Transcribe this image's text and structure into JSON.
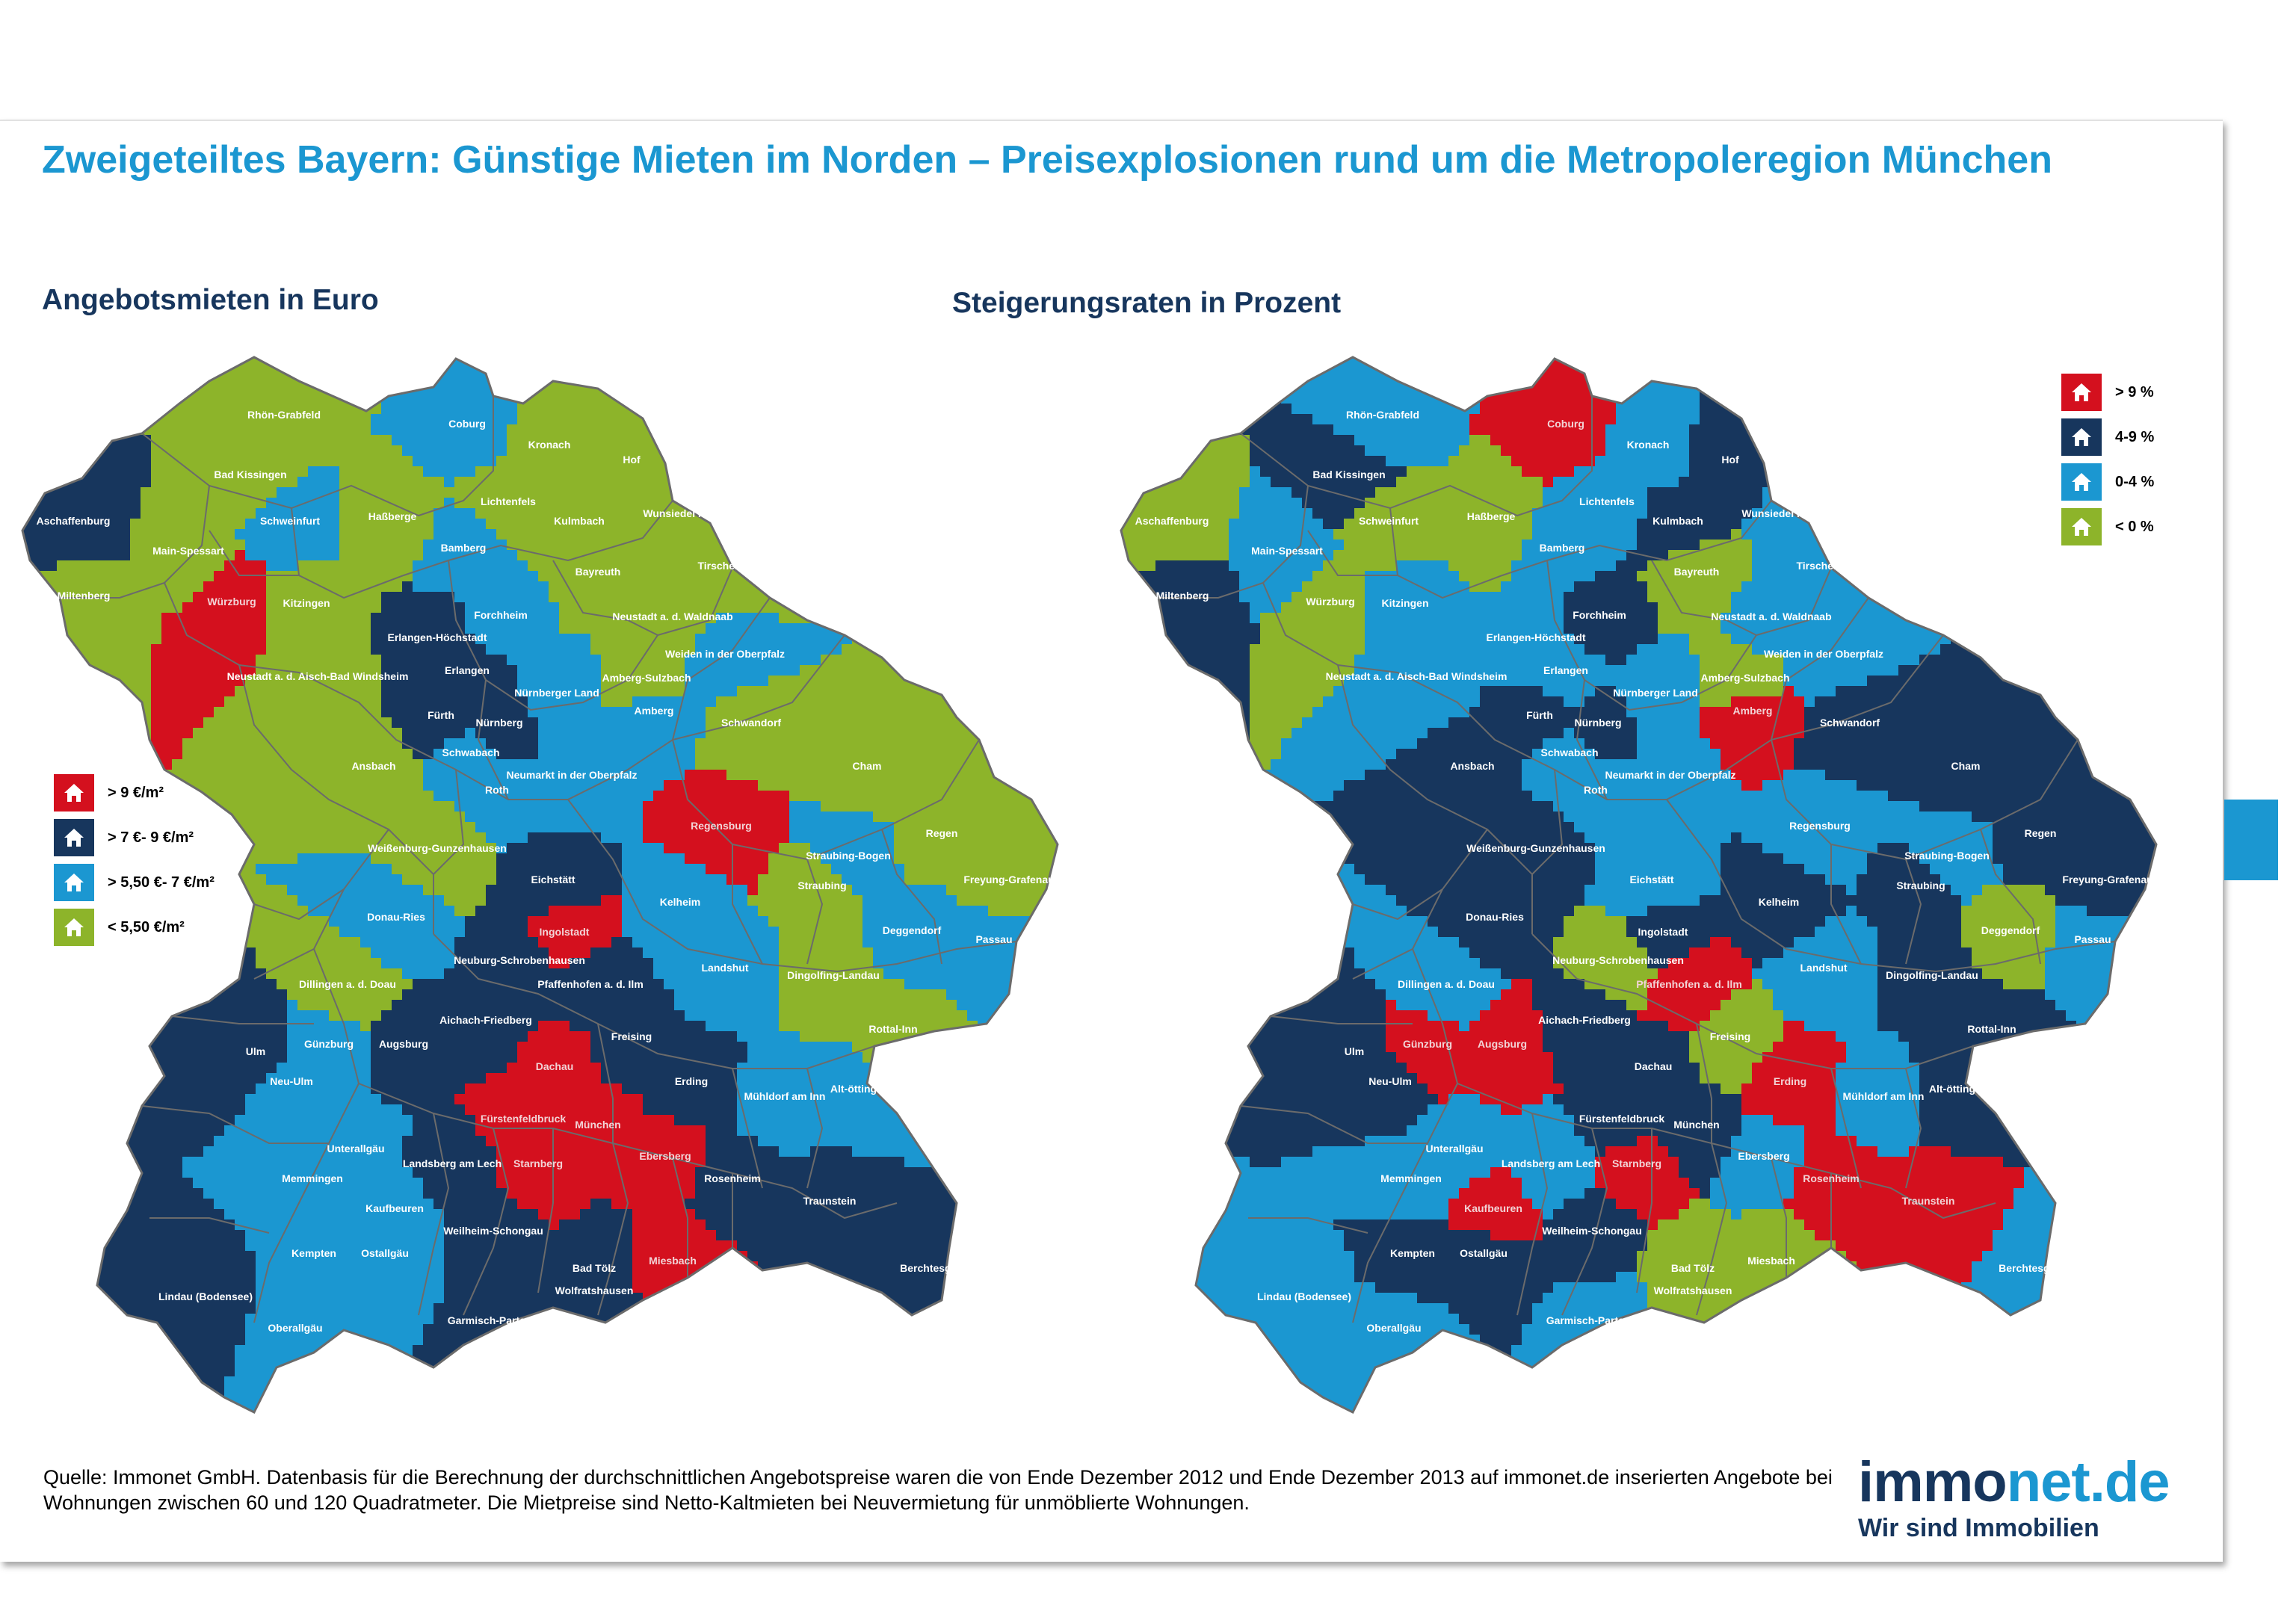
{
  "title": "Zweigeteiltes Bayern: Günstige Mieten im Norden – Preisexplosionen rund um die Metropoleregion München",
  "left_map": {
    "heading": "Angebotsmieten in Euro",
    "legend": [
      {
        "label": "> 9 €/m²",
        "color": "#d4101e"
      },
      {
        "label": "> 7 €- 9 €/m²",
        "color": "#17365d"
      },
      {
        "label": "> 5,50 €- 7 €/m²",
        "color": "#1b97d1"
      },
      {
        "label": "< 5,50 €/m²",
        "color": "#8db42a"
      }
    ],
    "regions": [
      {
        "name": "Rhön-Grabfeld",
        "value": "< 5,50 €/m²"
      },
      {
        "name": "Bad Kissingen",
        "value": "< 5,50 €/m²"
      },
      {
        "name": "Coburg",
        "value": "> 5,50 €- 7 €/m²"
      },
      {
        "name": "Kronach",
        "value": "< 5,50 €/m²"
      },
      {
        "name": "Hof",
        "value": "< 5,50 €/m²"
      },
      {
        "name": "Aschaffenburg",
        "value": "> 7 €- 9 €/m²"
      },
      {
        "name": "Main-Spessart",
        "value": "< 5,50 €/m²"
      },
      {
        "name": "Schweinfurt",
        "value": "> 5,50 €- 7 €/m²"
      },
      {
        "name": "Haßberge",
        "value": "< 5,50 €/m²"
      },
      {
        "name": "Lichtenfels",
        "value": "< 5,50 €/m²"
      },
      {
        "name": "Kulmbach",
        "value": "< 5,50 €/m²"
      },
      {
        "name": "Wunsiedel Fichtelgebirge",
        "value": "< 5,50 €/m²"
      },
      {
        "name": "Miltenberg",
        "value": "< 5,50 €/m²"
      },
      {
        "name": "Würzburg",
        "value": "> 9 €/m²"
      },
      {
        "name": "Kitzingen",
        "value": "< 5,50 €/m²"
      },
      {
        "name": "Bamberg",
        "value": "> 5,50 €- 7 €/m²"
      },
      {
        "name": "Bayreuth",
        "value": "< 5,50 €/m²"
      },
      {
        "name": "Tirschenreuth",
        "value": "< 5,50 €/m²"
      },
      {
        "name": "Erlangen-Höchstadt",
        "value": "> 7 €- 9 €/m²"
      },
      {
        "name": "Forchheim",
        "value": "> 5,50 €- 7 €/m²"
      },
      {
        "name": "Neustadt a. d. Waldnaab",
        "value": "< 5,50 €/m²"
      },
      {
        "name": "Weiden in der Oberpfalz",
        "value": "> 5,50 €- 7 €/m²"
      },
      {
        "name": "Neustadt a. d. Aisch-Bad Windsheim",
        "value": "< 5,50 €/m²"
      },
      {
        "name": "Erlangen",
        "value": "> 7 €- 9 €/m²"
      },
      {
        "name": "Nürnberger Land",
        "value": "> 5,50 €- 7 €/m²"
      },
      {
        "name": "Amberg-Sulzbach",
        "value": "< 5,50 €/m²"
      },
      {
        "name": "Fürth",
        "value": "> 7 €- 9 €/m²"
      },
      {
        "name": "Nürnberg",
        "value": "> 7 €- 9 €/m²"
      },
      {
        "name": "Amberg",
        "value": "> 5,50 €- 7 €/m²"
      },
      {
        "name": "Schwandorf",
        "value": "< 5,50 €/m²"
      },
      {
        "name": "Ansbach",
        "value": "< 5,50 €/m²"
      },
      {
        "name": "Schwabach",
        "value": "> 5,50 €- 7 €/m²"
      },
      {
        "name": "Roth",
        "value": "> 5,50 €- 7 €/m²"
      },
      {
        "name": "Neumarkt in der Oberpfalz",
        "value": "> 5,50 €- 7 €/m²"
      },
      {
        "name": "Cham",
        "value": "< 5,50 €/m²"
      },
      {
        "name": "Regensburg",
        "value": "> 9 €/m²"
      },
      {
        "name": "Weißenburg-Gunzenhausen",
        "value": "< 5,50 €/m²"
      },
      {
        "name": "Straubing-Bogen",
        "value": "> 5,50 €- 7 €/m²"
      },
      {
        "name": "Regen",
        "value": "< 5,50 €/m²"
      },
      {
        "name": "Freyung-Grafenau",
        "value": "< 5,50 €/m²"
      },
      {
        "name": "Eichstätt",
        "value": "> 7 €- 9 €/m²"
      },
      {
        "name": "Straubing",
        "value": "< 5,50 €/m²"
      },
      {
        "name": "Donau-Ries",
        "value": "> 5,50 €- 7 €/m²"
      },
      {
        "name": "Kelheim",
        "value": "> 5,50 €- 7 €/m²"
      },
      {
        "name": "Deggendorf",
        "value": "> 5,50 €- 7 €/m²"
      },
      {
        "name": "Ingolstadt",
        "value": "> 9 €/m²"
      },
      {
        "name": "Passau",
        "value": "> 5,50 €- 7 €/m²"
      },
      {
        "name": "Dillingen a. d. Doau",
        "value": "< 5,50 €/m²"
      },
      {
        "name": "Neuburg-Schrobenhausen",
        "value": "> 7 €- 9 €/m²"
      },
      {
        "name": "Pfaffenhofen a. d. Ilm",
        "value": "> 7 €- 9 €/m²"
      },
      {
        "name": "Landshut",
        "value": "> 5,50 €- 7 €/m²"
      },
      {
        "name": "Dingolfing-Landau",
        "value": "< 5,50 €/m²"
      },
      {
        "name": "Aichach-Friedberg",
        "value": "> 7 €- 9 €/m²"
      },
      {
        "name": "Rottal-Inn",
        "value": "< 5,50 €/m²"
      },
      {
        "name": "Günzburg",
        "value": "> 5,50 €- 7 €/m²"
      },
      {
        "name": "Augsburg",
        "value": "> 7 €- 9 €/m²"
      },
      {
        "name": "Freising",
        "value": "> 7 €- 9 €/m²"
      },
      {
        "name": "Ulm",
        "value": "> 7 €- 9 €/m²"
      },
      {
        "name": "Neu-Ulm",
        "value": "> 5,50 €- 7 €/m²"
      },
      {
        "name": "Dachau",
        "value": "> 9 €/m²"
      },
      {
        "name": "Erding",
        "value": "> 7 €- 9 €/m²"
      },
      {
        "name": "Mühldorf am Inn",
        "value": "> 5,50 €- 7 €/m²"
      },
      {
        "name": "Alt-ötting",
        "value": "> 5,50 €- 7 €/m²"
      },
      {
        "name": "Fürstenfeldbruck",
        "value": "> 9 €/m²"
      },
      {
        "name": "München",
        "value": "> 9 €/m²"
      },
      {
        "name": "Unterallgäu",
        "value": "> 5,50 €- 7 €/m²"
      },
      {
        "name": "Memmingen",
        "value": "> 5,50 €- 7 €/m²"
      },
      {
        "name": "Landsberg am Lech",
        "value": "> 7 €- 9 €/m²"
      },
      {
        "name": "Starnberg",
        "value": "> 9 €/m²"
      },
      {
        "name": "Ebersberg",
        "value": "> 9 €/m²"
      },
      {
        "name": "Rosenheim",
        "value": "> 7 €- 9 €/m²"
      },
      {
        "name": "Traunstein",
        "value": "> 7 €- 9 €/m²"
      },
      {
        "name": "Kaufbeuren",
        "value": "> 5,50 €- 7 €/m²"
      },
      {
        "name": "Weilheim-Schongau",
        "value": "> 7 €- 9 €/m²"
      },
      {
        "name": "Kempten",
        "value": "> 5,50 €- 7 €/m²"
      },
      {
        "name": "Ostallgäu",
        "value": "> 5,50 €- 7 €/m²"
      },
      {
        "name": "Bad Tölz",
        "value": "> 7 €- 9 €/m²"
      },
      {
        "name": "Miesbach",
        "value": "> 9 €/m²"
      },
      {
        "name": "Berchtesgadener Land",
        "value": "> 7 €- 9 €/m²"
      },
      {
        "name": "Wolfratshausen",
        "value": "> 7 €- 9 €/m²"
      },
      {
        "name": "Lindau (Bodensee)",
        "value": "> 7 €- 9 €/m²"
      },
      {
        "name": "Garmisch-Partenkirchen",
        "value": "> 7 €- 9 €/m²"
      },
      {
        "name": "Oberallgäu",
        "value": "> 5,50 €- 7 €/m²"
      }
    ]
  },
  "right_map": {
    "heading": "Steigerungsraten in Prozent",
    "legend": [
      {
        "label": "> 9 %",
        "color": "#d4101e"
      },
      {
        "label": "4-9 %",
        "color": "#17365d"
      },
      {
        "label": "0-4 %",
        "color": "#1b97d1"
      },
      {
        "label": "< 0 %",
        "color": "#8db42a"
      }
    ],
    "regions": [
      {
        "name": "Rhön-Grabfeld",
        "value": "0-4 %"
      },
      {
        "name": "Bad Kissingen",
        "value": "4-9 %"
      },
      {
        "name": "Coburg",
        "value": "> 9 %"
      },
      {
        "name": "Kronach",
        "value": "0-4 %"
      },
      {
        "name": "Hof",
        "value": "4-9 %"
      },
      {
        "name": "Aschaffenburg",
        "value": "< 0 %"
      },
      {
        "name": "Main-Spessart",
        "value": "0-4 %"
      },
      {
        "name": "Schweinfurt",
        "value": "< 0 %"
      },
      {
        "name": "Haßberge",
        "value": "< 0 %"
      },
      {
        "name": "Lichtenfels",
        "value": "0-4 %"
      },
      {
        "name": "Kulmbach",
        "value": "4-9 %"
      },
      {
        "name": "Wunsiedel Fichtelgebirge",
        "value": "0-4 %"
      },
      {
        "name": "Miltenberg",
        "value": "4-9 %"
      },
      {
        "name": "Würzburg",
        "value": "< 0 %"
      },
      {
        "name": "Kitzingen",
        "value": "0-4 %"
      },
      {
        "name": "Bamberg",
        "value": "0-4 %"
      },
      {
        "name": "Bayreuth",
        "value": "< 0 %"
      },
      {
        "name": "Tirschenreuth",
        "value": "0-4 %"
      },
      {
        "name": "Erlangen-Höchstadt",
        "value": "0-4 %"
      },
      {
        "name": "Forchheim",
        "value": "4-9 %"
      },
      {
        "name": "Neustadt a. d. Waldnaab",
        "value": "0-4 %"
      },
      {
        "name": "Weiden in der Oberpfalz",
        "value": "0-4 %"
      },
      {
        "name": "Neustadt a. d. Aisch-Bad Windsheim",
        "value": "0-4 %"
      },
      {
        "name": "Erlangen",
        "value": "0-4 %"
      },
      {
        "name": "Nürnberger Land",
        "value": "0-4 %"
      },
      {
        "name": "Amberg-Sulzbach",
        "value": "< 0 %"
      },
      {
        "name": "Fürth",
        "value": "4-9 %"
      },
      {
        "name": "Nürnberg",
        "value": "4-9 %"
      },
      {
        "name": "Amberg",
        "value": "> 9 %"
      },
      {
        "name": "Schwandorf",
        "value": "4-9 %"
      },
      {
        "name": "Ansbach",
        "value": "4-9 %"
      },
      {
        "name": "Schwabach",
        "value": "0-4 %"
      },
      {
        "name": "Roth",
        "value": "0-4 %"
      },
      {
        "name": "Neumarkt in der Oberpfalz",
        "value": "0-4 %"
      },
      {
        "name": "Cham",
        "value": "4-9 %"
      },
      {
        "name": "Regensburg",
        "value": "0-4 %"
      },
      {
        "name": "Weißenburg-Gunzenhausen",
        "value": "4-9 %"
      },
      {
        "name": "Straubing-Bogen",
        "value": "0-4 %"
      },
      {
        "name": "Regen",
        "value": "4-9 %"
      },
      {
        "name": "Freyung-Grafenau",
        "value": "4-9 %"
      },
      {
        "name": "Eichstätt",
        "value": "0-4 %"
      },
      {
        "name": "Straubing",
        "value": "4-9 %"
      },
      {
        "name": "Donau-Ries",
        "value": "4-9 %"
      },
      {
        "name": "Kelheim",
        "value": "4-9 %"
      },
      {
        "name": "Deggendorf",
        "value": "< 0 %"
      },
      {
        "name": "Ingolstadt",
        "value": "4-9 %"
      },
      {
        "name": "Passau",
        "value": "0-4 %"
      },
      {
        "name": "Dillingen a. d. Doau",
        "value": "0-4 %"
      },
      {
        "name": "Neuburg-Schrobenhausen",
        "value": "< 0 %"
      },
      {
        "name": "Pfaffenhofen a. d. Ilm",
        "value": "> 9 %"
      },
      {
        "name": "Landshut",
        "value": "0-4 %"
      },
      {
        "name": "Dingolfing-Landau",
        "value": "4-9 %"
      },
      {
        "name": "Aichach-Friedberg",
        "value": "4-9 %"
      },
      {
        "name": "Rottal-Inn",
        "value": "4-9 %"
      },
      {
        "name": "Günzburg",
        "value": "> 9 %"
      },
      {
        "name": "Augsburg",
        "value": "> 9 %"
      },
      {
        "name": "Freising",
        "value": "< 0 %"
      },
      {
        "name": "Ulm",
        "value": "4-9 %"
      },
      {
        "name": "Neu-Ulm",
        "value": "4-9 %"
      },
      {
        "name": "Dachau",
        "value": "4-9 %"
      },
      {
        "name": "Erding",
        "value": "> 9 %"
      },
      {
        "name": "Mühldorf am Inn",
        "value": "0-4 %"
      },
      {
        "name": "Alt-ötting",
        "value": "4-9 %"
      },
      {
        "name": "Fürstenfeldbruck",
        "value": "4-9 %"
      },
      {
        "name": "München",
        "value": "4-9 %"
      },
      {
        "name": "Unterallgäu",
        "value": "0-4 %"
      },
      {
        "name": "Memmingen",
        "value": "0-4 %"
      },
      {
        "name": "Landsberg am Lech",
        "value": "0-4 %"
      },
      {
        "name": "Starnberg",
        "value": "> 9 %"
      },
      {
        "name": "Ebersberg",
        "value": "0-4 %"
      },
      {
        "name": "Rosenheim",
        "value": "> 9 %"
      },
      {
        "name": "Traunstein",
        "value": "> 9 %"
      },
      {
        "name": "Kaufbeuren",
        "value": "> 9 %"
      },
      {
        "name": "Weilheim-Schongau",
        "value": "4-9 %"
      },
      {
        "name": "Kempten",
        "value": "4-9 %"
      },
      {
        "name": "Ostallgäu",
        "value": "4-9 %"
      },
      {
        "name": "Bad Tölz",
        "value": "< 0 %"
      },
      {
        "name": "Miesbach",
        "value": "< 0 %"
      },
      {
        "name": "Berchtesgadener Land",
        "value": "0-4 %"
      },
      {
        "name": "Wolfratshausen",
        "value": "< 0 %"
      },
      {
        "name": "Lindau (Bodensee)",
        "value": "0-4 %"
      },
      {
        "name": "Garmisch-Partenkirchen",
        "value": "0-4 %"
      },
      {
        "name": "Oberallgäu",
        "value": "0-4 %"
      }
    ]
  },
  "source": "Quelle: Immonet GmbH. Datenbasis für die Berechnung der durchschnittlichen Angebotspreise waren die von Ende Dezember 2012 und Ende Dezember 2013 auf immonet.de inserierten Angebote bei Wohnungen zwischen 60 und 120 Quadratmeter. Die Mietpreise sind Netto-Kaltmieten bei Neuvermietung für unmöblierte Wohnungen.",
  "logo": {
    "part1": "immo",
    "part2": "net.de",
    "tagline": "Wir sind Immobilien"
  },
  "colors": {
    "red": "#d4101e",
    "navy": "#17365d",
    "blue": "#1b97d1",
    "green": "#8db42a",
    "accent": "#1b97d1"
  },
  "icon": "house-icon"
}
